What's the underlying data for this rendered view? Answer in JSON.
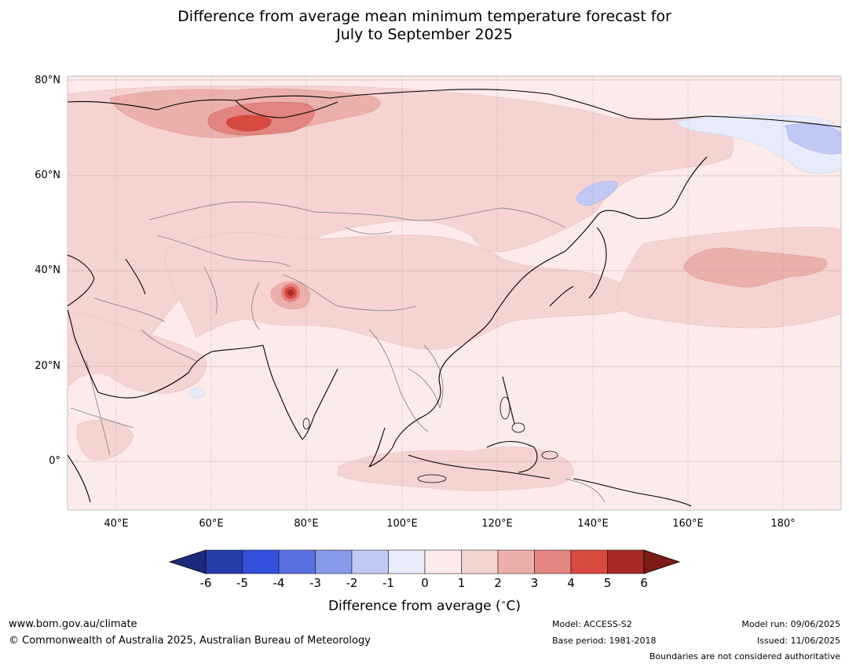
{
  "title_line1": "Difference from average mean minimum temperature forecast for",
  "title_line2": "July to September 2025",
  "map": {
    "lat_labels": [
      "80°N",
      "60°N",
      "40°N",
      "20°N",
      "0°"
    ],
    "lon_labels": [
      "40°E",
      "60°E",
      "80°E",
      "100°E",
      "120°E",
      "140°E",
      "160°E",
      "180°"
    ],
    "land_outline_color": "#000000",
    "boundary_color": "#888888"
  },
  "colorbar": {
    "ticks": [
      "-6",
      "-5",
      "-4",
      "-3",
      "-2",
      "-1",
      "0",
      "1",
      "2",
      "3",
      "4",
      "5",
      "6"
    ],
    "colors": [
      "#1b2a7a",
      "#263ca8",
      "#3250dc",
      "#5b70e0",
      "#8899e8",
      "#c0c8f4",
      "#e8ebfb",
      "#fcebea",
      "#f5d3d1",
      "#ecb0ac",
      "#e48480",
      "#d84a40",
      "#a82a24",
      "#7a1c18"
    ],
    "label": "Difference from average (",
    "label_unit": "C)",
    "degree_mark": "∘"
  },
  "footer": {
    "url": "www.bom.gov.au/climate",
    "copyright": "© Commonwealth of Australia 2025, Australian Bureau of Meteorology",
    "model": "Model: ACCESS-S2",
    "base_period": "Base period: 1981-2018",
    "model_run": "Model run: 09/06/2025",
    "issued": "Issued: 11/06/2025",
    "boundaries_note": "Boundaries are not considered authoritative"
  }
}
